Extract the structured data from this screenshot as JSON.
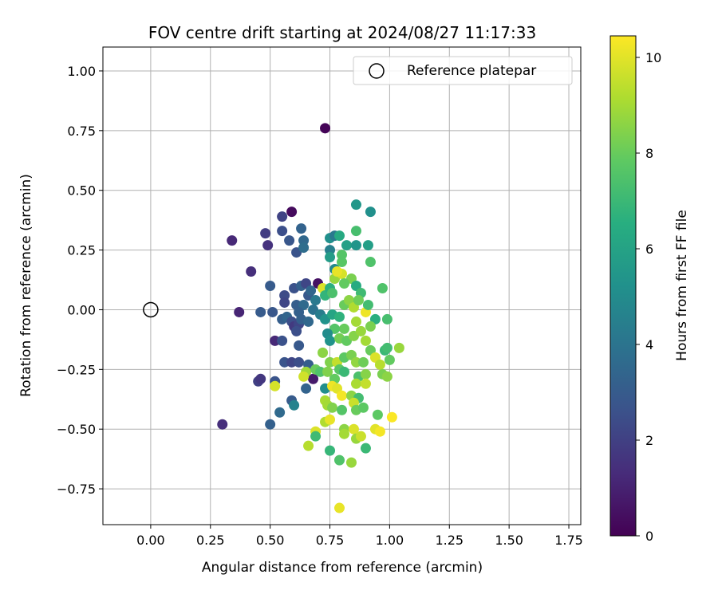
{
  "chart_data": {
    "type": "scatter",
    "title": "FOV centre drift starting at 2024/08/27 11:17:33",
    "xlabel": "Angular distance from reference (arcmin)",
    "ylabel": "Rotation from reference (arcmin)",
    "xlim": [
      -0.2,
      1.8
    ],
    "ylim": [
      -0.9,
      1.1
    ],
    "x_ticks": [
      0.0,
      0.25,
      0.5,
      0.75,
      1.0,
      1.25,
      1.5,
      1.75
    ],
    "x_tick_labels": [
      "0.00",
      "0.25",
      "0.50",
      "0.75",
      "1.00",
      "1.25",
      "1.50",
      "1.75"
    ],
    "y_ticks": [
      -0.75,
      -0.5,
      -0.25,
      0.0,
      0.25,
      0.5,
      0.75,
      1.0
    ],
    "y_tick_labels": [
      "−0.75",
      "−0.50",
      "−0.25",
      "0.00",
      "0.25",
      "0.50",
      "0.75",
      "1.00"
    ],
    "grid": true,
    "legend": {
      "position": "top-right",
      "entries": [
        "Reference platepar"
      ]
    },
    "reference_point": {
      "x": 0.0,
      "y": 0.0
    },
    "colorbar": {
      "label": "Hours from first FF file",
      "colormap": "viridis",
      "range": [
        0,
        10.45
      ],
      "ticks": [
        0,
        2,
        4,
        6,
        8,
        10
      ],
      "tick_labels": [
        "0",
        "2",
        "4",
        "6",
        "8",
        "10"
      ]
    },
    "points": [
      {
        "x": 0.73,
        "y": 0.76,
        "h": 0.1
      },
      {
        "x": 0.59,
        "y": 0.41,
        "h": 0.3
      },
      {
        "x": 0.7,
        "y": 0.11,
        "h": 0.5
      },
      {
        "x": 0.34,
        "y": 0.29,
        "h": 1.2
      },
      {
        "x": 0.37,
        "y": -0.01,
        "h": 1.1
      },
      {
        "x": 0.42,
        "y": 0.16,
        "h": 1.4
      },
      {
        "x": 0.3,
        "y": -0.48,
        "h": 1.4
      },
      {
        "x": 0.52,
        "y": -0.13,
        "h": 1.2
      },
      {
        "x": 0.68,
        "y": -0.29,
        "h": 0.8
      },
      {
        "x": 0.48,
        "y": 0.32,
        "h": 1.9
      },
      {
        "x": 0.55,
        "y": 0.39,
        "h": 2.1
      },
      {
        "x": 0.49,
        "y": 0.27,
        "h": 1.5
      },
      {
        "x": 0.55,
        "y": 0.33,
        "h": 2.5
      },
      {
        "x": 0.58,
        "y": 0.29,
        "h": 2.8
      },
      {
        "x": 0.61,
        "y": 0.24,
        "h": 2.7
      },
      {
        "x": 0.63,
        "y": 0.34,
        "h": 3.3
      },
      {
        "x": 0.64,
        "y": 0.29,
        "h": 3.5
      },
      {
        "x": 0.64,
        "y": 0.26,
        "h": 3.7
      },
      {
        "x": 0.5,
        "y": 0.1,
        "h": 3.0
      },
      {
        "x": 0.56,
        "y": 0.06,
        "h": 2.4
      },
      {
        "x": 0.56,
        "y": 0.03,
        "h": 2.2
      },
      {
        "x": 0.6,
        "y": 0.09,
        "h": 2.6
      },
      {
        "x": 0.63,
        "y": 0.1,
        "h": 3.2
      },
      {
        "x": 0.65,
        "y": 0.11,
        "h": 2.2
      },
      {
        "x": 0.66,
        "y": 0.06,
        "h": 2.9
      },
      {
        "x": 0.67,
        "y": 0.08,
        "h": 3.4
      },
      {
        "x": 0.69,
        "y": 0.04,
        "h": 4.2
      },
      {
        "x": 0.61,
        "y": 0.02,
        "h": 3.1
      },
      {
        "x": 0.64,
        "y": 0.02,
        "h": 3.6
      },
      {
        "x": 0.62,
        "y": -0.01,
        "h": 3.2
      },
      {
        "x": 0.46,
        "y": -0.01,
        "h": 3.0
      },
      {
        "x": 0.51,
        "y": -0.01,
        "h": 2.8
      },
      {
        "x": 0.55,
        "y": -0.04,
        "h": 3.1
      },
      {
        "x": 0.57,
        "y": -0.03,
        "h": 3.4
      },
      {
        "x": 0.59,
        "y": -0.05,
        "h": 2.5
      },
      {
        "x": 0.6,
        "y": -0.07,
        "h": 1.8
      },
      {
        "x": 0.62,
        "y": -0.06,
        "h": 2.2
      },
      {
        "x": 0.61,
        "y": -0.09,
        "h": 2.5
      },
      {
        "x": 0.63,
        "y": -0.04,
        "h": 3.2
      },
      {
        "x": 0.66,
        "y": -0.05,
        "h": 3.5
      },
      {
        "x": 0.68,
        "y": 0.0,
        "h": 3.9
      },
      {
        "x": 0.71,
        "y": -0.02,
        "h": 4.4
      },
      {
        "x": 0.55,
        "y": -0.13,
        "h": 2.6
      },
      {
        "x": 0.62,
        "y": -0.15,
        "h": 2.9
      },
      {
        "x": 0.56,
        "y": -0.22,
        "h": 2.7
      },
      {
        "x": 0.59,
        "y": -0.22,
        "h": 2.2
      },
      {
        "x": 0.62,
        "y": -0.22,
        "h": 2.5
      },
      {
        "x": 0.66,
        "y": -0.23,
        "h": 3.1
      },
      {
        "x": 0.45,
        "y": -0.3,
        "h": 2.0
      },
      {
        "x": 0.46,
        "y": -0.29,
        "h": 1.7
      },
      {
        "x": 0.52,
        "y": -0.3,
        "h": 2.7
      },
      {
        "x": 0.65,
        "y": -0.33,
        "h": 3.3
      },
      {
        "x": 0.59,
        "y": -0.38,
        "h": 3.0
      },
      {
        "x": 0.54,
        "y": -0.43,
        "h": 3.6
      },
      {
        "x": 0.5,
        "y": -0.48,
        "h": 3.2
      },
      {
        "x": 0.6,
        "y": -0.4,
        "h": 4.6
      },
      {
        "x": 0.75,
        "y": 0.3,
        "h": 5.2
      },
      {
        "x": 0.77,
        "y": 0.31,
        "h": 4.2
      },
      {
        "x": 0.79,
        "y": 0.31,
        "h": 6.3
      },
      {
        "x": 0.82,
        "y": 0.27,
        "h": 5.9
      },
      {
        "x": 0.86,
        "y": 0.27,
        "h": 5.4
      },
      {
        "x": 0.86,
        "y": 0.33,
        "h": 7.3
      },
      {
        "x": 0.86,
        "y": 0.44,
        "h": 5.5
      },
      {
        "x": 0.92,
        "y": 0.41,
        "h": 5.2
      },
      {
        "x": 0.91,
        "y": 0.27,
        "h": 5.8
      },
      {
        "x": 0.92,
        "y": 0.2,
        "h": 7.5
      },
      {
        "x": 0.75,
        "y": 0.25,
        "h": 4.5
      },
      {
        "x": 0.75,
        "y": 0.22,
        "h": 5.7
      },
      {
        "x": 0.77,
        "y": 0.17,
        "h": 4.9
      },
      {
        "x": 0.8,
        "y": 0.2,
        "h": 7.7
      },
      {
        "x": 0.8,
        "y": 0.23,
        "h": 7.6
      },
      {
        "x": 0.77,
        "y": 0.13,
        "h": 8.8
      },
      {
        "x": 0.8,
        "y": 0.15,
        "h": 9.8
      },
      {
        "x": 0.78,
        "y": 0.16,
        "h": 10.1
      },
      {
        "x": 0.84,
        "y": 0.13,
        "h": 8.3
      },
      {
        "x": 0.81,
        "y": 0.11,
        "h": 7.9
      },
      {
        "x": 0.86,
        "y": 0.1,
        "h": 6.4
      },
      {
        "x": 0.72,
        "y": 0.09,
        "h": 9.9
      },
      {
        "x": 0.73,
        "y": 0.06,
        "h": 6.8
      },
      {
        "x": 0.75,
        "y": 0.09,
        "h": 6.6
      },
      {
        "x": 0.76,
        "y": 0.07,
        "h": 7.4
      },
      {
        "x": 0.88,
        "y": 0.07,
        "h": 7.1
      },
      {
        "x": 0.97,
        "y": 0.09,
        "h": 7.5
      },
      {
        "x": 0.73,
        "y": -0.04,
        "h": 5.3
      },
      {
        "x": 0.76,
        "y": -0.02,
        "h": 6.1
      },
      {
        "x": 0.79,
        "y": -0.03,
        "h": 6.7
      },
      {
        "x": 0.81,
        "y": 0.02,
        "h": 8.0
      },
      {
        "x": 0.83,
        "y": 0.04,
        "h": 8.6
      },
      {
        "x": 0.85,
        "y": 0.01,
        "h": 9.2
      },
      {
        "x": 0.87,
        "y": 0.04,
        "h": 8.1
      },
      {
        "x": 0.9,
        "y": -0.01,
        "h": 10.2
      },
      {
        "x": 0.91,
        "y": 0.02,
        "h": 7.2
      },
      {
        "x": 0.94,
        "y": -0.04,
        "h": 6.6
      },
      {
        "x": 0.99,
        "y": -0.04,
        "h": 7.3
      },
      {
        "x": 0.92,
        "y": -0.07,
        "h": 8.3
      },
      {
        "x": 0.86,
        "y": -0.05,
        "h": 9.0
      },
      {
        "x": 0.81,
        "y": -0.08,
        "h": 8.0
      },
      {
        "x": 0.77,
        "y": -0.08,
        "h": 7.6
      },
      {
        "x": 0.74,
        "y": -0.1,
        "h": 5.0
      },
      {
        "x": 0.75,
        "y": -0.13,
        "h": 5.3
      },
      {
        "x": 0.79,
        "y": -0.12,
        "h": 8.2
      },
      {
        "x": 0.82,
        "y": -0.13,
        "h": 7.9
      },
      {
        "x": 0.85,
        "y": -0.11,
        "h": 8.5
      },
      {
        "x": 0.88,
        "y": -0.09,
        "h": 8.8
      },
      {
        "x": 0.9,
        "y": -0.13,
        "h": 9.0
      },
      {
        "x": 0.92,
        "y": -0.17,
        "h": 8.0
      },
      {
        "x": 0.98,
        "y": -0.17,
        "h": 7.0
      },
      {
        "x": 0.99,
        "y": -0.16,
        "h": 7.2
      },
      {
        "x": 1.04,
        "y": -0.16,
        "h": 8.8
      },
      {
        "x": 0.72,
        "y": -0.18,
        "h": 8.6
      },
      {
        "x": 0.75,
        "y": -0.22,
        "h": 8.4
      },
      {
        "x": 0.78,
        "y": -0.22,
        "h": 9.5
      },
      {
        "x": 0.81,
        "y": -0.2,
        "h": 7.8
      },
      {
        "x": 0.84,
        "y": -0.19,
        "h": 8.3
      },
      {
        "x": 0.86,
        "y": -0.22,
        "h": 8.7
      },
      {
        "x": 0.89,
        "y": -0.22,
        "h": 8.1
      },
      {
        "x": 0.94,
        "y": -0.2,
        "h": 9.9
      },
      {
        "x": 0.96,
        "y": -0.23,
        "h": 9.3
      },
      {
        "x": 1.0,
        "y": -0.21,
        "h": 7.9
      },
      {
        "x": 0.65,
        "y": -0.26,
        "h": 8.9
      },
      {
        "x": 0.69,
        "y": -0.25,
        "h": 8.0
      },
      {
        "x": 0.71,
        "y": -0.26,
        "h": 7.5
      },
      {
        "x": 0.74,
        "y": -0.26,
        "h": 8.4
      },
      {
        "x": 0.79,
        "y": -0.25,
        "h": 7.7
      },
      {
        "x": 0.81,
        "y": -0.26,
        "h": 7.0
      },
      {
        "x": 0.77,
        "y": -0.29,
        "h": 7.9
      },
      {
        "x": 0.87,
        "y": -0.28,
        "h": 7.4
      },
      {
        "x": 0.9,
        "y": -0.27,
        "h": 8.5
      },
      {
        "x": 0.97,
        "y": -0.27,
        "h": 8.3
      },
      {
        "x": 0.99,
        "y": -0.28,
        "h": 8.6
      },
      {
        "x": 0.52,
        "y": -0.32,
        "h": 9.8
      },
      {
        "x": 0.64,
        "y": -0.28,
        "h": 9.7
      },
      {
        "x": 0.73,
        "y": -0.33,
        "h": 5.1
      },
      {
        "x": 0.76,
        "y": -0.32,
        "h": 10.2
      },
      {
        "x": 0.78,
        "y": -0.33,
        "h": 10.0
      },
      {
        "x": 0.8,
        "y": -0.36,
        "h": 10.3
      },
      {
        "x": 0.86,
        "y": -0.31,
        "h": 9.1
      },
      {
        "x": 0.9,
        "y": -0.31,
        "h": 9.5
      },
      {
        "x": 0.84,
        "y": -0.36,
        "h": 8.6
      },
      {
        "x": 0.87,
        "y": -0.37,
        "h": 7.2
      },
      {
        "x": 0.73,
        "y": -0.38,
        "h": 9.1
      },
      {
        "x": 0.74,
        "y": -0.4,
        "h": 9.0
      },
      {
        "x": 0.76,
        "y": -0.41,
        "h": 8.4
      },
      {
        "x": 0.8,
        "y": -0.42,
        "h": 7.6
      },
      {
        "x": 0.85,
        "y": -0.39,
        "h": 9.6
      },
      {
        "x": 0.86,
        "y": -0.42,
        "h": 8.0
      },
      {
        "x": 0.89,
        "y": -0.41,
        "h": 7.8
      },
      {
        "x": 0.95,
        "y": -0.44,
        "h": 7.8
      },
      {
        "x": 0.73,
        "y": -0.47,
        "h": 9.2
      },
      {
        "x": 0.75,
        "y": -0.46,
        "h": 10.1
      },
      {
        "x": 0.69,
        "y": -0.51,
        "h": 9.9
      },
      {
        "x": 0.69,
        "y": -0.53,
        "h": 7.1
      },
      {
        "x": 0.81,
        "y": -0.5,
        "h": 8.6
      },
      {
        "x": 0.81,
        "y": -0.52,
        "h": 9.0
      },
      {
        "x": 0.85,
        "y": -0.5,
        "h": 9.9
      },
      {
        "x": 0.86,
        "y": -0.54,
        "h": 8.8
      },
      {
        "x": 0.88,
        "y": -0.53,
        "h": 9.6
      },
      {
        "x": 0.9,
        "y": -0.58,
        "h": 7.0
      },
      {
        "x": 0.94,
        "y": -0.5,
        "h": 10.0
      },
      {
        "x": 0.96,
        "y": -0.51,
        "h": 10.3
      },
      {
        "x": 1.01,
        "y": -0.45,
        "h": 10.4
      },
      {
        "x": 0.66,
        "y": -0.57,
        "h": 9.3
      },
      {
        "x": 0.75,
        "y": -0.59,
        "h": 6.9
      },
      {
        "x": 0.79,
        "y": -0.63,
        "h": 7.5
      },
      {
        "x": 0.84,
        "y": -0.64,
        "h": 8.8
      },
      {
        "x": 0.79,
        "y": -0.83,
        "h": 10.1
      }
    ]
  }
}
